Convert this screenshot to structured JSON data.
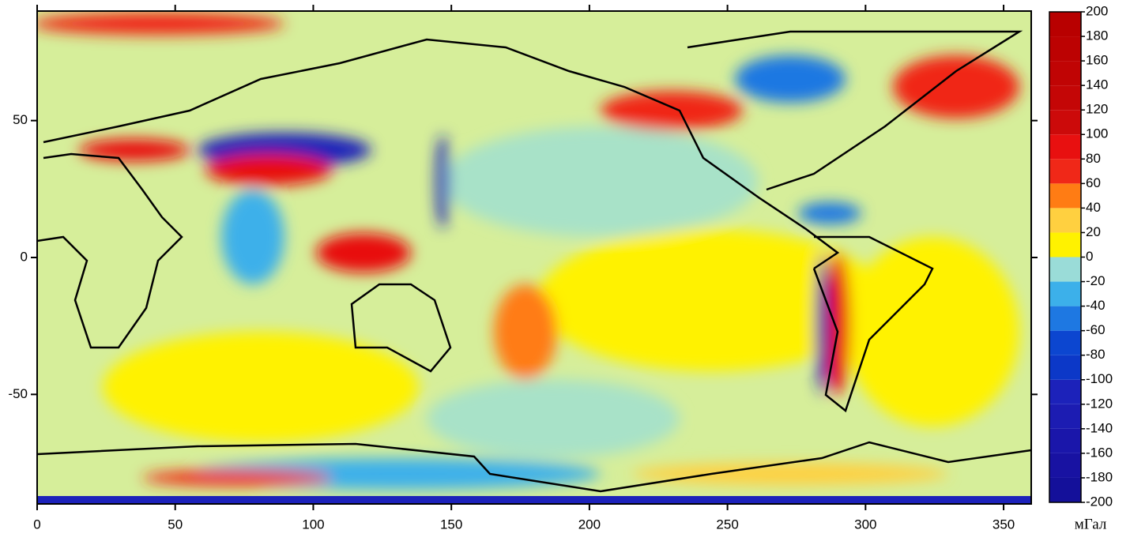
{
  "chart_data": {
    "type": "heatmap",
    "xlim": [
      0,
      360
    ],
    "xticks": [
      0,
      50,
      100,
      150,
      200,
      250,
      300,
      350
    ],
    "ylim": [
      -90,
      90
    ],
    "yticks": [
      -50,
      0,
      50
    ],
    "colorbar": {
      "label": "мГал",
      "ticks": [
        -200,
        -180,
        -160,
        -140,
        -120,
        -100,
        -80,
        -60,
        -40,
        -20,
        0,
        20,
        40,
        60,
        80,
        100,
        120,
        140,
        160,
        180,
        200
      ],
      "colors": [
        "#14109a",
        "#1812a2",
        "#1a16aa",
        "#1c1cb2",
        "#1c22ba",
        "#0c38c8",
        "#0c46d0",
        "#1e78e2",
        "#3cb0ea",
        "#9adcd8",
        "#fff200",
        "#ffd040",
        "#ff7c14",
        "#f02818",
        "#e81010",
        "#cc0a0a",
        "#c40606",
        "#c00404",
        "#bc0202",
        "#b80000"
      ]
    }
  }
}
